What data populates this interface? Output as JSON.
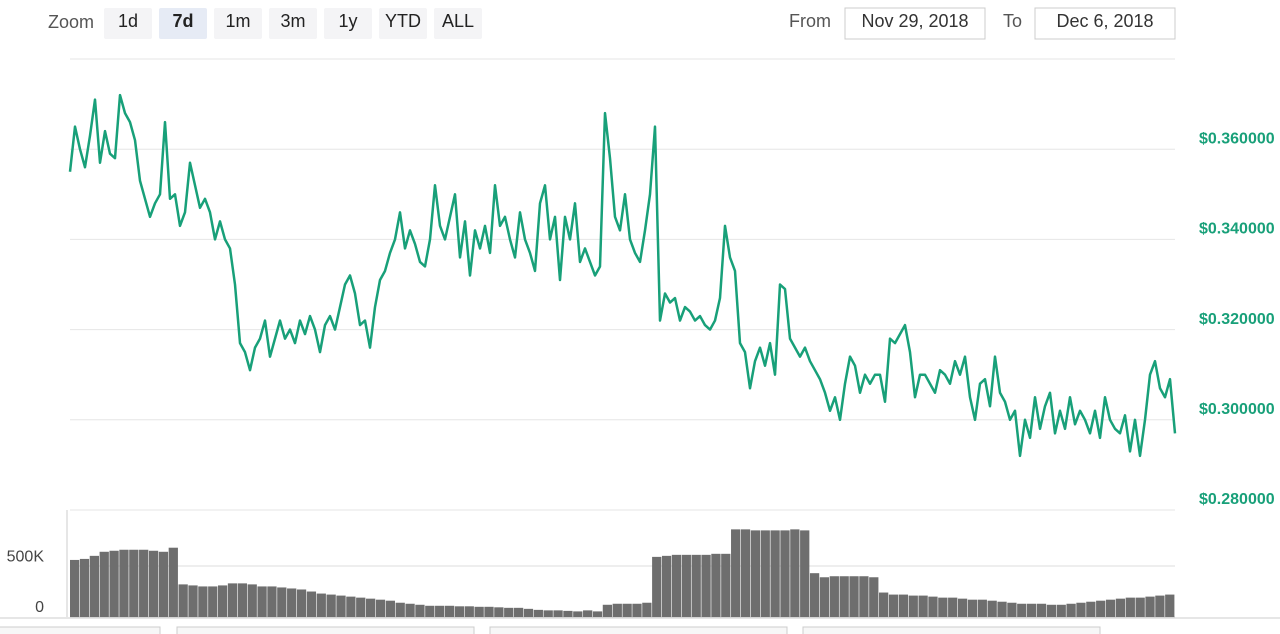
{
  "toolbar": {
    "zoom_label": "Zoom",
    "buttons": [
      "1d",
      "7d",
      "1m",
      "3m",
      "1y",
      "YTD",
      "ALL"
    ],
    "selected": 1,
    "from_label": "From",
    "from": "Nov 29, 2018",
    "to_label": "To",
    "to": "Dec 6, 2018"
  },
  "chart_data": [
    {
      "type": "line",
      "color": "#18a079",
      "grid": true,
      "ylim": [
        0.28,
        0.38
      ],
      "yticks": [
        {
          "value": 0.28,
          "label": "$0.280000"
        },
        {
          "value": 0.3,
          "label": "$0.300000"
        },
        {
          "value": 0.32,
          "label": "$0.320000"
        },
        {
          "value": 0.34,
          "label": "$0.340000"
        },
        {
          "value": 0.36,
          "label": "$0.360000"
        }
      ],
      "values": [
        0.355,
        0.365,
        0.36,
        0.356,
        0.363,
        0.371,
        0.357,
        0.364,
        0.359,
        0.358,
        0.372,
        0.368,
        0.366,
        0.362,
        0.353,
        0.349,
        0.345,
        0.348,
        0.35,
        0.366,
        0.349,
        0.35,
        0.343,
        0.346,
        0.357,
        0.352,
        0.347,
        0.349,
        0.346,
        0.34,
        0.344,
        0.34,
        0.338,
        0.33,
        0.317,
        0.315,
        0.311,
        0.316,
        0.318,
        0.322,
        0.314,
        0.318,
        0.322,
        0.318,
        0.32,
        0.317,
        0.322,
        0.319,
        0.323,
        0.32,
        0.315,
        0.321,
        0.323,
        0.32,
        0.325,
        0.33,
        0.332,
        0.328,
        0.321,
        0.322,
        0.316,
        0.325,
        0.331,
        0.333,
        0.337,
        0.34,
        0.346,
        0.338,
        0.342,
        0.339,
        0.335,
        0.334,
        0.34,
        0.352,
        0.343,
        0.34,
        0.345,
        0.35,
        0.336,
        0.344,
        0.332,
        0.342,
        0.338,
        0.343,
        0.337,
        0.352,
        0.343,
        0.345,
        0.34,
        0.336,
        0.346,
        0.34,
        0.337,
        0.333,
        0.348,
        0.352,
        0.34,
        0.345,
        0.331,
        0.345,
        0.34,
        0.348,
        0.335,
        0.338,
        0.335,
        0.332,
        0.334,
        0.368,
        0.358,
        0.345,
        0.342,
        0.35,
        0.34,
        0.337,
        0.335,
        0.342,
        0.35,
        0.365,
        0.322,
        0.328,
        0.326,
        0.327,
        0.322,
        0.325,
        0.324,
        0.322,
        0.323,
        0.321,
        0.32,
        0.322,
        0.327,
        0.343,
        0.336,
        0.333,
        0.317,
        0.315,
        0.307,
        0.313,
        0.316,
        0.312,
        0.317,
        0.31,
        0.33,
        0.329,
        0.318,
        0.316,
        0.314,
        0.316,
        0.313,
        0.311,
        0.309,
        0.306,
        0.302,
        0.305,
        0.3,
        0.308,
        0.314,
        0.312,
        0.306,
        0.31,
        0.308,
        0.31,
        0.31,
        0.304,
        0.318,
        0.317,
        0.319,
        0.321,
        0.315,
        0.305,
        0.31,
        0.31,
        0.308,
        0.306,
        0.311,
        0.31,
        0.308,
        0.313,
        0.31,
        0.314,
        0.305,
        0.3,
        0.308,
        0.309,
        0.303,
        0.314,
        0.306,
        0.304,
        0.3,
        0.302,
        0.292,
        0.3,
        0.296,
        0.305,
        0.298,
        0.303,
        0.306,
        0.297,
        0.302,
        0.298,
        0.305,
        0.299,
        0.302,
        0.3,
        0.297,
        0.302,
        0.296,
        0.305,
        0.3,
        0.298,
        0.297,
        0.301,
        0.293,
        0.3,
        0.292,
        0.3,
        0.31,
        0.313,
        0.307,
        0.305,
        0.309,
        0.297
      ]
    },
    {
      "type": "bar",
      "color": "#6e6e6e",
      "grid": true,
      "ylim": [
        0,
        1050000
      ],
      "yticks": [
        0,
        {
          "value": 500000,
          "label": "500K"
        }
      ],
      "values": [
        560000,
        570000,
        600000,
        640000,
        650000,
        660000,
        660000,
        660000,
        650000,
        640000,
        680000,
        320000,
        310000,
        300000,
        300000,
        310000,
        330000,
        330000,
        320000,
        300000,
        300000,
        290000,
        280000,
        270000,
        250000,
        230000,
        220000,
        210000,
        200000,
        190000,
        180000,
        170000,
        160000,
        140000,
        130000,
        120000,
        110000,
        110000,
        110000,
        105000,
        105000,
        100000,
        100000,
        95000,
        90000,
        90000,
        80000,
        70000,
        65000,
        65000,
        60000,
        55000,
        65000,
        55000,
        120000,
        130000,
        130000,
        130000,
        140000,
        590000,
        600000,
        610000,
        610000,
        610000,
        610000,
        620000,
        620000,
        860000,
        860000,
        850000,
        850000,
        850000,
        850000,
        860000,
        850000,
        430000,
        390000,
        400000,
        400000,
        400000,
        400000,
        390000,
        240000,
        220000,
        220000,
        210000,
        210000,
        200000,
        190000,
        190000,
        180000,
        170000,
        170000,
        160000,
        150000,
        140000,
        130000,
        130000,
        130000,
        120000,
        120000,
        130000,
        140000,
        150000,
        160000,
        170000,
        180000,
        190000,
        190000,
        200000,
        210000,
        220000
      ]
    }
  ]
}
